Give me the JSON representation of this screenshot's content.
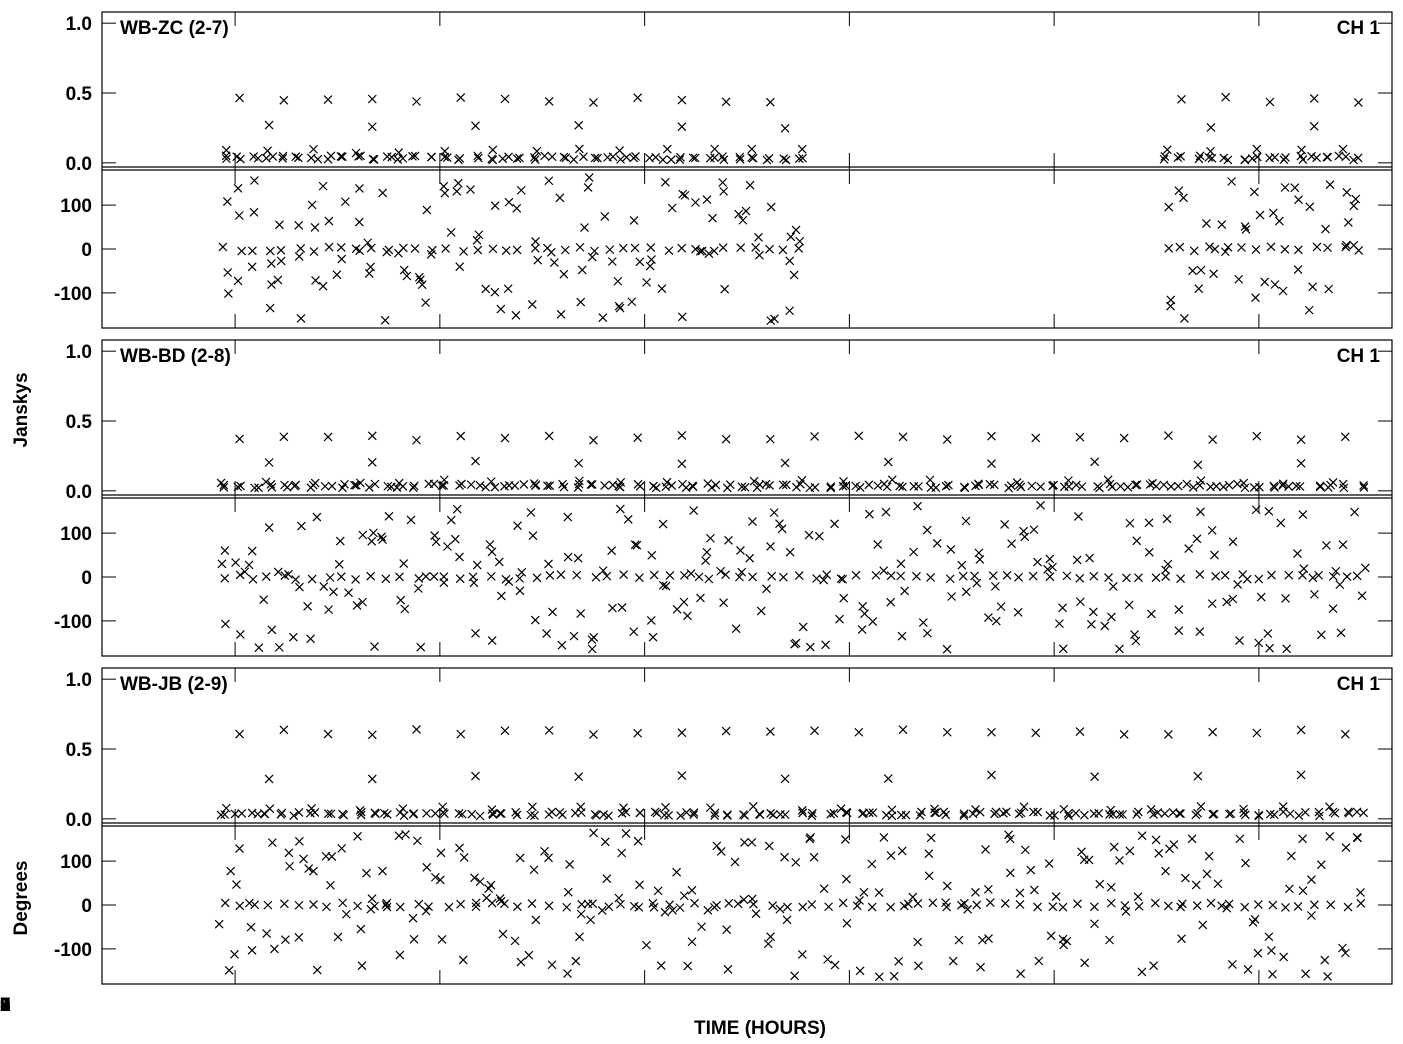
{
  "chart_data": {
    "type": "scatter",
    "xlabel": "TIME (HOURS)",
    "xlim": [
      16.35,
      22.65
    ],
    "x_ticks": [
      17,
      18,
      19,
      20,
      21,
      22
    ],
    "amp_ylabel": "Janskys",
    "phase_ylabel": "Degrees",
    "amp_ylim": [
      -0.03,
      1.08
    ],
    "phase_ylim": [
      -180,
      180
    ],
    "amp_ticks": [
      "1.0",
      "0.5",
      "0.0"
    ],
    "phase_ticks": [
      "100",
      "0",
      "-100"
    ],
    "marker": "x",
    "marker_color": "#000000",
    "panels": [
      {
        "baseline": "WB-ZC (2-7)",
        "channel": "CH 1",
        "segments": [
          [
            16.95,
            19.78
          ],
          [
            21.55,
            22.55
          ]
        ],
        "amp_levels": [
          0.02,
          0.07,
          0.26,
          0.45
        ],
        "phase_levels": [
          0,
          -20,
          20,
          -60,
          60
        ]
      },
      {
        "baseline": "WB-BD (2-8)",
        "channel": "CH 1",
        "segments": [
          [
            16.95,
            22.55
          ]
        ],
        "amp_levels": [
          0.02,
          0.05,
          0.2,
          0.38
        ],
        "phase_levels": [
          0,
          -20,
          20,
          80
        ]
      },
      {
        "baseline": "WB-JB (2-9)",
        "channel": "CH 1",
        "segments": [
          [
            16.95,
            22.55
          ]
        ],
        "amp_levels": [
          0.02,
          0.06,
          0.3,
          0.62
        ],
        "phase_levels": [
          0,
          -20,
          20,
          40
        ]
      }
    ]
  }
}
